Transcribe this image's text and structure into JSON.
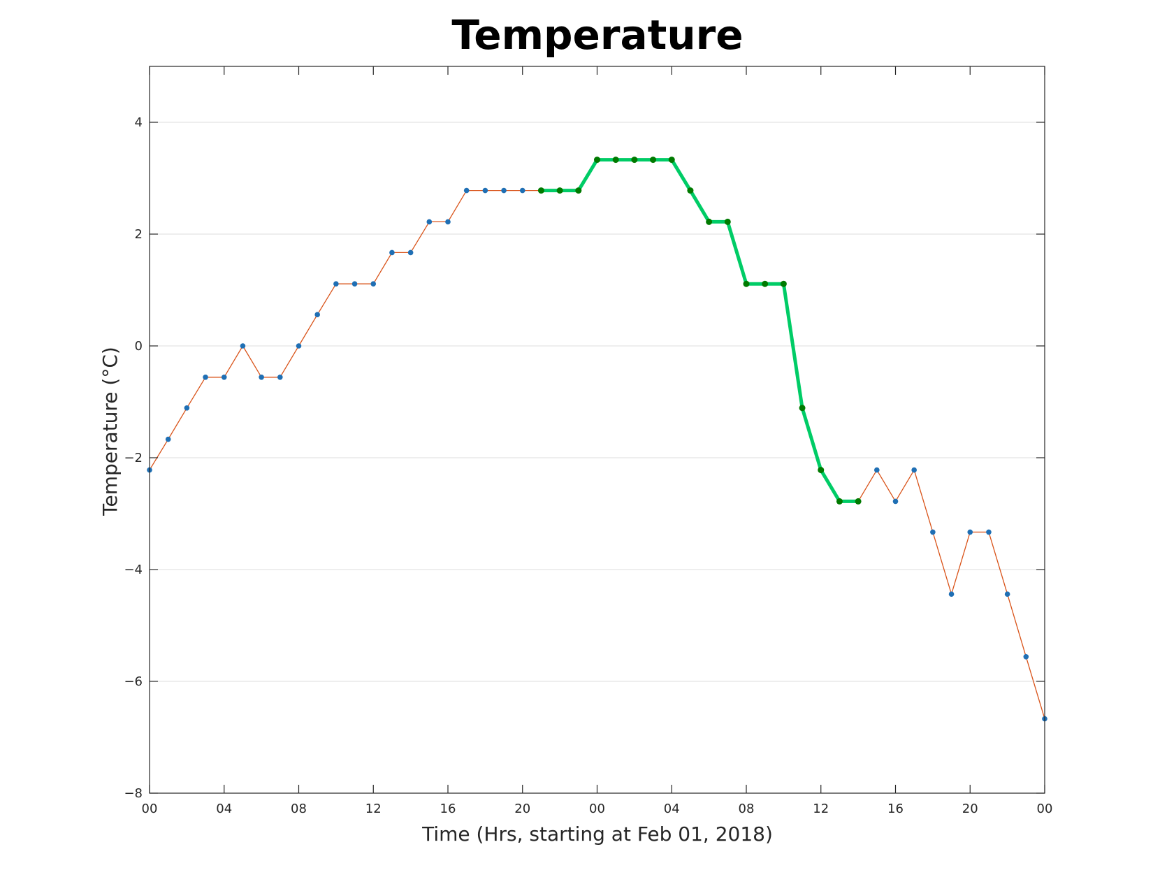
{
  "chart_data": {
    "type": "line",
    "title": "Temperature",
    "xlabel": "Time (Hrs, starting at Feb 01, 2018)",
    "ylabel": "Temperature (°C)",
    "xlim": [
      0,
      48
    ],
    "ylim": [
      -8,
      5
    ],
    "grid": "horizontal",
    "x_ticks": [
      {
        "x": 0,
        "label": "00"
      },
      {
        "x": 4,
        "label": "04"
      },
      {
        "x": 8,
        "label": "08"
      },
      {
        "x": 12,
        "label": "12"
      },
      {
        "x": 16,
        "label": "16"
      },
      {
        "x": 20,
        "label": "20"
      },
      {
        "x": 24,
        "label": "00"
      },
      {
        "x": 28,
        "label": "04"
      },
      {
        "x": 32,
        "label": "08"
      },
      {
        "x": 36,
        "label": "12"
      },
      {
        "x": 40,
        "label": "16"
      },
      {
        "x": 44,
        "label": "20"
      },
      {
        "x": 48,
        "label": "00"
      }
    ],
    "y_ticks": [
      {
        "y": -8,
        "label": "−8"
      },
      {
        "y": -6,
        "label": "−6"
      },
      {
        "y": -4,
        "label": "−4"
      },
      {
        "y": -2,
        "label": "−2"
      },
      {
        "y": 0,
        "label": "0"
      },
      {
        "y": 2,
        "label": "2"
      },
      {
        "y": 4,
        "label": "4"
      }
    ],
    "series": [
      {
        "color": "#d95319",
        "marker_color": "#1f6fb4",
        "line_width": "thin",
        "x": [
          0,
          1,
          2,
          3,
          4,
          5,
          6,
          7,
          8,
          9,
          10,
          11,
          12,
          13,
          14,
          15,
          16,
          17,
          18,
          19,
          20,
          21,
          22,
          23,
          24,
          25,
          26,
          27,
          28,
          29,
          30,
          31,
          32,
          33,
          34,
          35,
          36,
          37,
          38,
          39,
          40,
          41,
          42,
          43,
          44,
          45,
          46,
          47,
          48
        ],
        "y": [
          -2.22,
          -1.67,
          -1.11,
          -0.56,
          -0.56,
          0,
          -0.56,
          -0.56,
          0,
          0.56,
          1.11,
          1.11,
          1.11,
          1.67,
          1.67,
          2.22,
          2.22,
          2.78,
          2.78,
          2.78,
          2.78,
          2.78,
          2.78,
          2.78,
          3.33,
          3.33,
          3.33,
          3.33,
          3.33,
          2.78,
          2.22,
          2.22,
          1.11,
          1.11,
          1.11,
          -1.11,
          -2.22,
          -2.78,
          -2.78,
          -2.22,
          -2.78,
          -2.22,
          -3.33,
          -4.44,
          -3.33,
          -3.33,
          -4.44,
          -5.56,
          -6.67
        ]
      },
      {
        "color": "#00cc66",
        "marker_color": "#007a00",
        "line_width": "thick",
        "x": [
          21,
          22,
          23,
          24,
          25,
          26,
          27,
          28,
          29,
          30,
          31,
          32,
          33,
          34,
          35,
          36,
          37,
          38
        ],
        "y": [
          2.78,
          2.78,
          2.78,
          3.33,
          3.33,
          3.33,
          3.33,
          3.33,
          2.78,
          2.22,
          2.22,
          1.11,
          1.11,
          1.11,
          -1.11,
          -2.22,
          -2.78,
          -2.78
        ]
      }
    ]
  }
}
